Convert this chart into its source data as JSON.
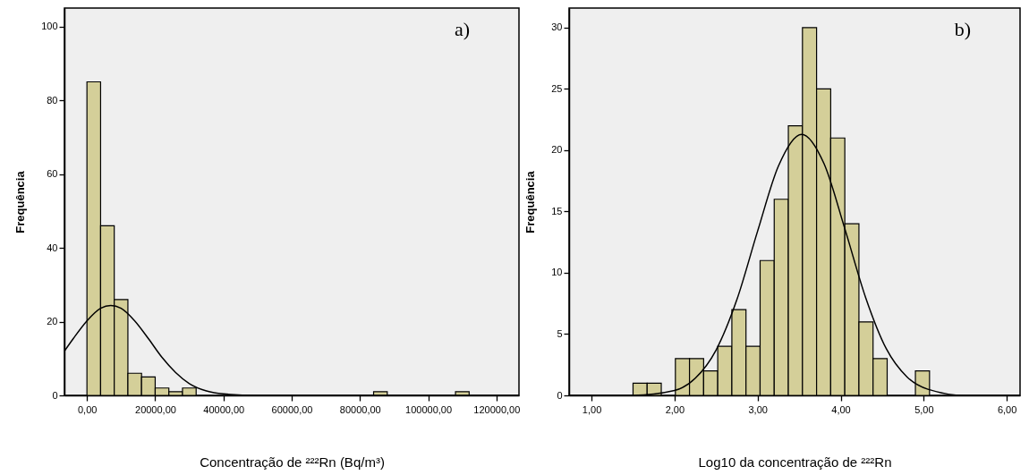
{
  "chart_data": [
    {
      "type": "histogram",
      "xlabel": "Concentração de ²²²Rn (Bq/m³)",
      "ylabel": "Frequência",
      "annotations": [
        "a)"
      ],
      "xlim": [
        -6600,
        126600
      ],
      "ylim": [
        0,
        105
      ],
      "xticks": [
        {
          "value": 0,
          "label": "0,00"
        },
        {
          "value": 20000,
          "label": "20000,00"
        },
        {
          "value": 40000,
          "label": "40000,00"
        },
        {
          "value": 60000,
          "label": "60000,00"
        },
        {
          "value": 80000,
          "label": "80000,00"
        },
        {
          "value": 100000,
          "label": "100000,00"
        },
        {
          "value": 120000,
          "label": "120000,00"
        }
      ],
      "yticks": [
        0,
        20,
        40,
        60,
        80,
        100
      ],
      "series": [
        {
          "type": "histogram",
          "color": "#d4cf99",
          "bins": [
            0,
            4000,
            8000,
            12000,
            16000,
            20000,
            24000,
            28000,
            32000,
            36000,
            40000,
            44000,
            48000,
            52000,
            56000,
            60000,
            64000,
            68000,
            72000,
            76000,
            80000,
            84000,
            88000,
            92000,
            96000,
            100000,
            104000,
            108000,
            112000
          ],
          "values": [
            85,
            46,
            26,
            6,
            5,
            2,
            1,
            2,
            0,
            0,
            0,
            0,
            0,
            0,
            0,
            0,
            0,
            0,
            0,
            0,
            0,
            1,
            0,
            0,
            0,
            0,
            0,
            1
          ]
        },
        {
          "type": "line",
          "color": "#000000",
          "x": [
            -6600,
            -4000,
            0,
            4000,
            7000,
            10000,
            14000,
            18000,
            22000,
            26000,
            30000,
            35000,
            40000,
            50000,
            60000,
            80000,
            126600
          ],
          "values": [
            12.0,
            15.4,
            20.2,
            23.6,
            24.4,
            23.6,
            20.2,
            15.4,
            10.3,
            6.2,
            3.2,
            1.2,
            0.4,
            0,
            0,
            0,
            0
          ]
        }
      ]
    },
    {
      "type": "histogram",
      "xlabel": "Log10 da concentração de ²²²Rn",
      "ylabel": "Frequência",
      "annotations": [
        "b)"
      ],
      "xlim": [
        0.73,
        6.16
      ],
      "ylim": [
        0,
        31.6
      ],
      "xticks": [
        {
          "value": 1,
          "label": "1,00"
        },
        {
          "value": 2,
          "label": "2,00"
        },
        {
          "value": 3,
          "label": "3,00"
        },
        {
          "value": 4,
          "label": "4,00"
        },
        {
          "value": 5,
          "label": "5,00"
        },
        {
          "value": 6,
          "label": "6,00"
        }
      ],
      "yticks": [
        0,
        5,
        10,
        15,
        20,
        25,
        30
      ],
      "series": [
        {
          "type": "histogram",
          "color": "#d4cf99",
          "bins": [
            1.5,
            1.67,
            1.84,
            2.01,
            2.18,
            2.35,
            2.52,
            2.69,
            2.86,
            3.03,
            3.2,
            3.37,
            3.54,
            3.71,
            3.88,
            4.05,
            4.22,
            4.39,
            4.56,
            4.73,
            4.9,
            5.07
          ],
          "values": [
            1,
            1,
            0,
            3,
            3,
            2,
            4,
            7,
            4,
            11,
            16,
            22,
            30,
            25,
            21,
            14,
            6,
            3,
            0,
            0,
            2
          ]
        },
        {
          "type": "line",
          "color": "#000000",
          "x": [
            0.73,
            1.5,
            2.0,
            2.25,
            2.5,
            2.75,
            3.0,
            3.25,
            3.53,
            3.8,
            4.05,
            4.3,
            4.55,
            4.8,
            5.05,
            5.5,
            6.16
          ],
          "values": [
            0,
            0,
            0.4,
            1.4,
            3.7,
            7.8,
            13.4,
            18.7,
            21.3,
            18.9,
            13.6,
            8.0,
            3.8,
            1.5,
            0.5,
            0,
            0
          ]
        }
      ]
    }
  ]
}
